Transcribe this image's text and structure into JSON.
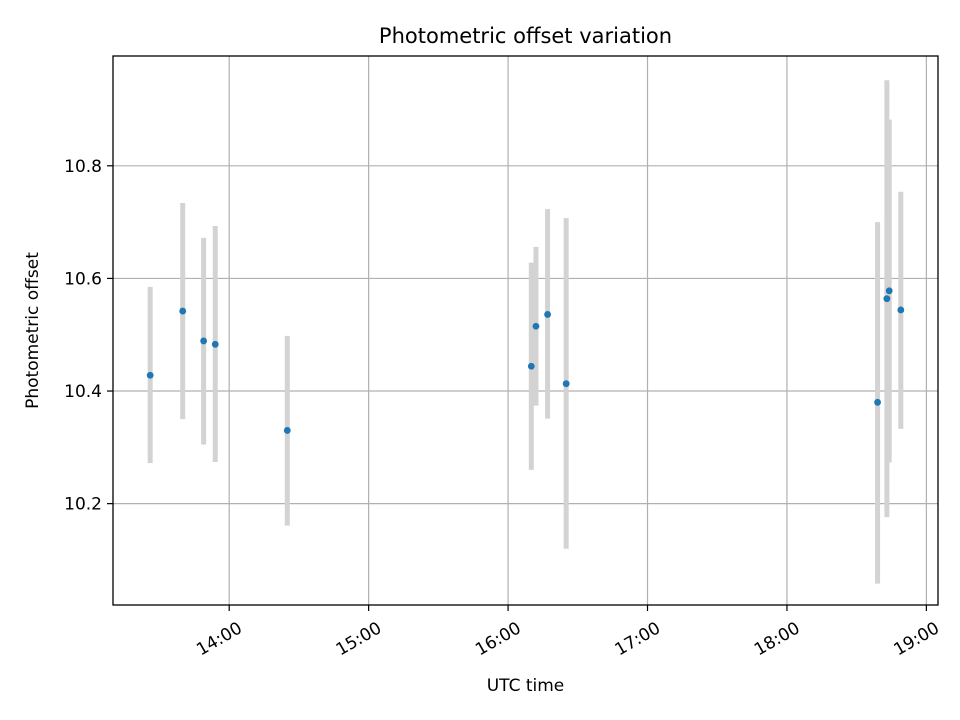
{
  "chart_data": {
    "type": "scatter",
    "title": "Photometric offset variation",
    "xlabel": "UTC time",
    "ylabel": "Photometric offset",
    "xlim": [
      "13:10",
      "19:05"
    ],
    "ylim": [
      10.02,
      10.995
    ],
    "x_ticks": [
      "14:00",
      "15:00",
      "16:00",
      "17:00",
      "18:00",
      "19:00"
    ],
    "y_ticks": [
      10.2,
      10.4,
      10.6,
      10.8
    ],
    "y_tick_labels": [
      "10.2",
      "10.4",
      "10.6",
      "10.8"
    ],
    "grid": true,
    "colors": {
      "point": "#1f77b4",
      "errorbar": "#d3d3d3",
      "grid": "#b0b0b0"
    },
    "points": [
      {
        "x": "13:26",
        "y": 10.428,
        "ylow": 10.272,
        "yhigh": 10.585
      },
      {
        "x": "13:40",
        "y": 10.542,
        "ylow": 10.35,
        "yhigh": 10.734
      },
      {
        "x": "13:49",
        "y": 10.489,
        "ylow": 10.305,
        "yhigh": 10.672
      },
      {
        "x": "13:54",
        "y": 10.483,
        "ylow": 10.274,
        "yhigh": 10.693
      },
      {
        "x": "14:25",
        "y": 10.33,
        "ylow": 10.161,
        "yhigh": 10.498
      },
      {
        "x": "16:10",
        "y": 10.444,
        "ylow": 10.26,
        "yhigh": 10.628
      },
      {
        "x": "16:12",
        "y": 10.515,
        "ylow": 10.374,
        "yhigh": 10.656
      },
      {
        "x": "16:17",
        "y": 10.536,
        "ylow": 10.351,
        "yhigh": 10.723
      },
      {
        "x": "16:25",
        "y": 10.413,
        "ylow": 10.12,
        "yhigh": 10.707
      },
      {
        "x": "18:39",
        "y": 10.38,
        "ylow": 10.058,
        "yhigh": 10.7
      },
      {
        "x": "18:43",
        "y": 10.564,
        "ylow": 10.176,
        "yhigh": 10.952
      },
      {
        "x": "18:44",
        "y": 10.578,
        "ylow": 10.273,
        "yhigh": 10.882
      },
      {
        "x": "18:49",
        "y": 10.544,
        "ylow": 10.333,
        "yhigh": 10.754
      }
    ]
  }
}
